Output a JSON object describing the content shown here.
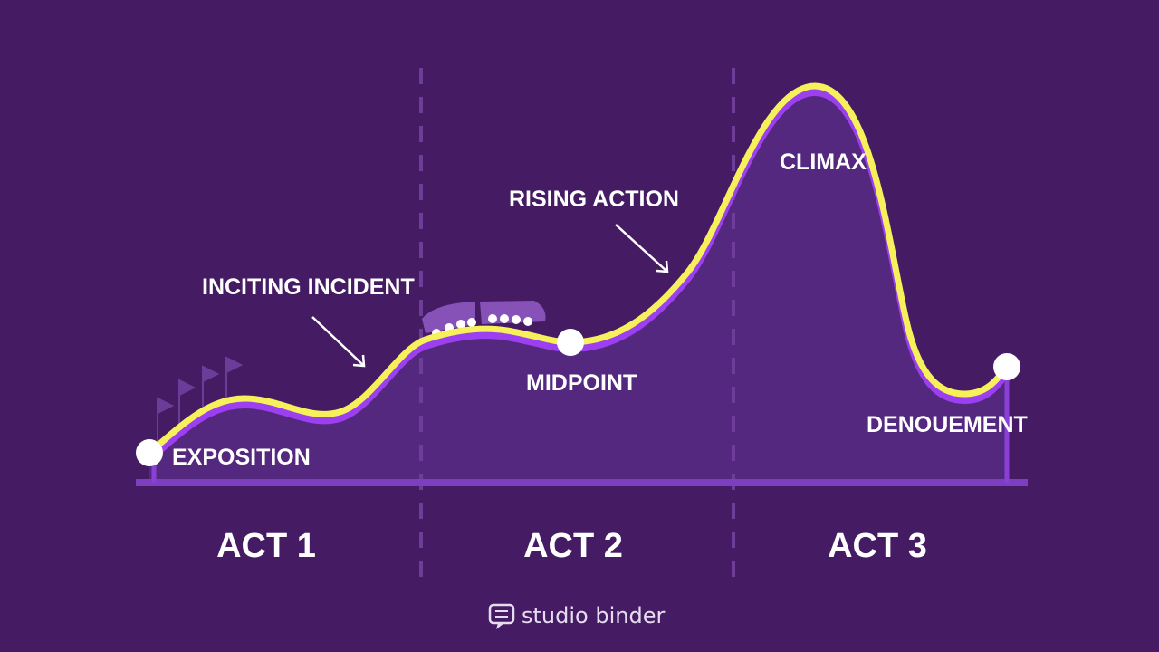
{
  "points": [
    {
      "label": "EXPOSITION"
    },
    {
      "label": "INCITING INCIDENT"
    },
    {
      "label": "RISING ACTION"
    },
    {
      "label": "MIDPOINT"
    },
    {
      "label": "CLIMAX"
    },
    {
      "label": "DENOUEMENT"
    }
  ],
  "acts": [
    "ACT 1",
    "ACT 2",
    "ACT 3"
  ],
  "brand": "studio binder"
}
